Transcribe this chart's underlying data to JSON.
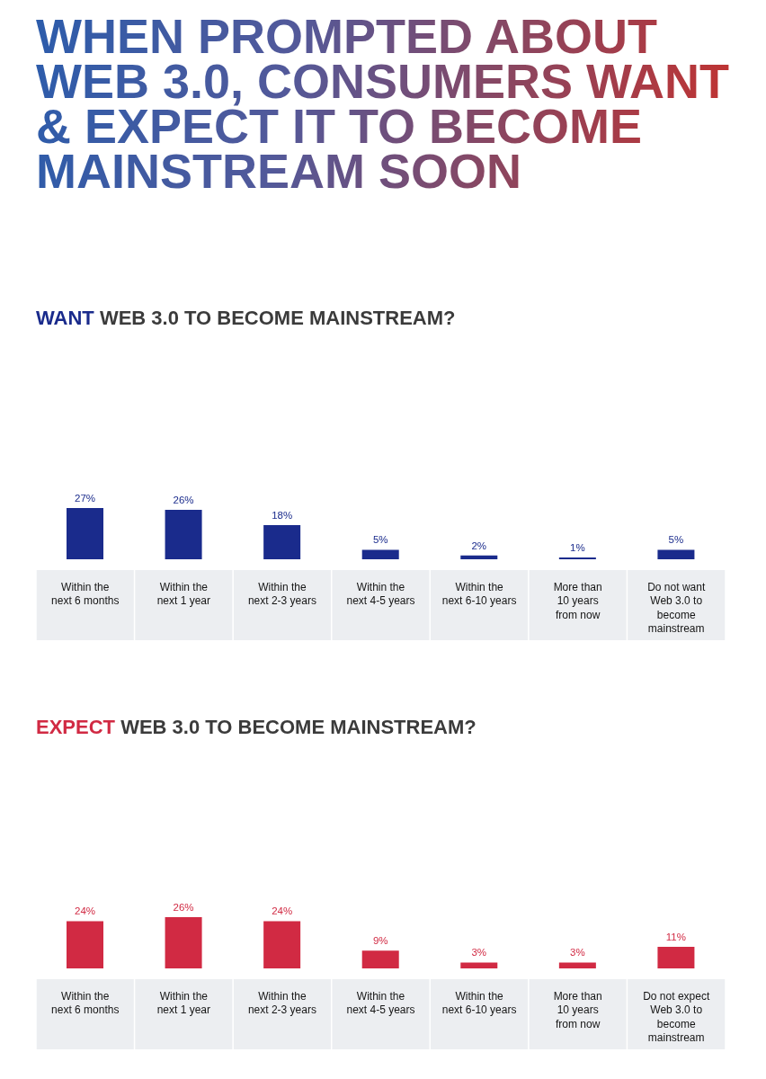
{
  "chart_data": [
    {
      "type": "bar",
      "title": "WHEN PROMPTED ABOUT WEB 3.0, CONSUMERS WANT & EXPECT IT TO BECOME MAINSTREAM SOON",
      "subtitle": "WANT WEB 3.0 TO BECOME MAINSTREAM?",
      "categories": [
        "Within the\nnext 6 months",
        "Within the\nnext 1 year",
        "Within the\nnext 2-3 years",
        "Within the\nnext 4-5 years",
        "Within the\nnext 6-10 years",
        "More than\n10 years\nfrom now",
        "Do not want\nWeb 3.0 to\nbecome\nmainstream"
      ],
      "values": [
        27,
        26,
        18,
        5,
        2,
        1,
        5
      ],
      "value_labels": [
        "27%",
        "26%",
        "18%",
        "5%",
        "2%",
        "1%",
        "5%"
      ],
      "color": "#1a2b8c"
    },
    {
      "type": "bar",
      "title": "EXPECT WEB 3.0 TO BECOME MAINSTREAM?",
      "categories": [
        "Within the\nnext 6 months",
        "Within the\nnext 1 year",
        "Within the\nnext 2-3 years",
        "Within the\nnext 4-5 years",
        "Within the\nnext 6-10 years",
        "More than\n10 years\nfrom now",
        "Do not expect\nWeb 3.0 to\nbecome\nmainstream"
      ],
      "values": [
        24,
        26,
        24,
        9,
        3,
        3,
        11
      ],
      "value_labels": [
        "24%",
        "26%",
        "24%",
        "9%",
        "3%",
        "3%",
        "11%"
      ],
      "color": "#d12a43"
    }
  ]
}
